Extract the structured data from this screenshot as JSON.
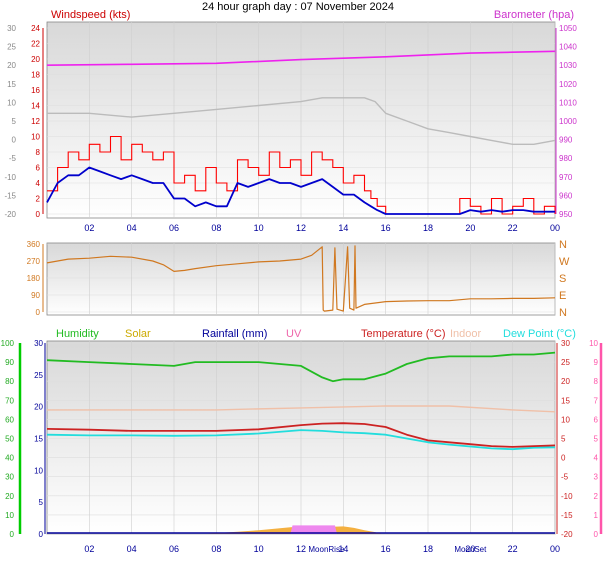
{
  "title": "24 hour graph day : 07 November 2024",
  "colors": {
    "windspeed": "#ff0000",
    "wind_avg": "#0000cc",
    "barometer": "#ee22ee",
    "pressure_grey": "#bbbbbb",
    "wind_dir": "#d07820",
    "humidity": "#22bb22",
    "solar": "#ccaa00",
    "rainfall": "#000099",
    "uv": "#ee66aa",
    "temperature": "#cc2222",
    "indoor": "#f0c0a8",
    "dew_point": "#22dddd",
    "solar_fill": "#f4b040",
    "uv_fill": "#ee88ee",
    "axis_green": "#00cc00",
    "axis_pink": "#ff55aa"
  },
  "chart_data": [
    {
      "type": "line",
      "panel": "wind",
      "x_ticks": [
        "02",
        "04",
        "06",
        "08",
        "10",
        "12",
        "14",
        "16",
        "18",
        "20",
        "22",
        "00"
      ],
      "left_outer_ticks": [
        "30",
        "25",
        "20",
        "15",
        "10",
        "5",
        "0",
        "-5",
        "-10",
        "-15",
        "-20"
      ],
      "left_inner_ticks": [
        "24",
        "22",
        "20",
        "18",
        "16",
        "14",
        "12",
        "10",
        "8",
        "6",
        "4",
        "2",
        "0"
      ],
      "right_ticks": [
        "1050",
        "1040",
        "1030",
        "1020",
        "1010",
        "1000",
        "990",
        "980",
        "970",
        "960",
        "950"
      ],
      "ylabel_left": "Windspeed (kts)",
      "ylabel_right": "Barometer (hpa)",
      "y_range_left": [
        0,
        24
      ],
      "y_range_right": [
        950,
        1050
      ],
      "x_range": [
        0,
        24
      ],
      "series": [
        {
          "name": "Barometer (hpa)",
          "color_key": "barometer",
          "axis": "right",
          "x": [
            0,
            4,
            8,
            12,
            16,
            20,
            22,
            24
          ],
          "y": [
            1030,
            1030.5,
            1031,
            1033,
            1034.5,
            1036.5,
            1037,
            1037.5
          ]
        },
        {
          "name": "",
          "color_key": "pressure_grey",
          "axis": "left",
          "x": [
            0,
            2,
            4,
            6,
            8,
            10,
            12,
            13,
            14,
            15,
            15.5,
            16,
            17,
            18,
            19,
            20,
            21,
            22,
            23,
            24
          ],
          "y": [
            13,
            13,
            12.5,
            13,
            13.5,
            14,
            14.5,
            15,
            15,
            15,
            14.5,
            13,
            12,
            11,
            10.5,
            10,
            9.5,
            9,
            9,
            9.5
          ]
        },
        {
          "name": "Windspeed (kts)",
          "color_key": "windspeed",
          "axis": "left",
          "x": [
            0,
            0.5,
            1,
            1.5,
            2,
            2.5,
            3,
            3.5,
            4,
            4.5,
            5,
            5.5,
            6,
            6.5,
            7,
            7.5,
            8,
            8.5,
            9,
            9.5,
            10,
            10.5,
            11,
            11.5,
            12,
            12.5,
            13,
            13.5,
            14,
            14.5,
            15,
            15.3,
            15.6,
            16,
            17,
            18,
            18.5,
            19,
            19.5,
            20,
            20.5,
            21,
            21.5,
            22,
            22.5,
            23,
            23.5,
            24
          ],
          "y": [
            3,
            6,
            8,
            7,
            9,
            8,
            10,
            7,
            9,
            8,
            7,
            8,
            4,
            5,
            3,
            6,
            4,
            3,
            7,
            6,
            5,
            8,
            6,
            7,
            5,
            8,
            7,
            6,
            4,
            5,
            3,
            2,
            1,
            0,
            0,
            0,
            0,
            0,
            2,
            1,
            0,
            2,
            0,
            1,
            2,
            0,
            1,
            0
          ]
        },
        {
          "name": "",
          "color_key": "wind_avg",
          "axis": "left",
          "x": [
            0,
            0.5,
            1,
            1.5,
            2,
            2.5,
            3,
            3.5,
            4,
            4.5,
            5,
            5.5,
            6,
            6.5,
            7,
            7.5,
            8,
            8.5,
            9,
            9.5,
            10,
            10.5,
            11,
            11.5,
            12,
            12.5,
            13,
            13.5,
            14,
            14.5,
            15,
            15.3,
            15.6,
            16,
            17,
            18,
            18.5,
            19,
            19.5,
            20,
            20.5,
            21,
            21.5,
            22,
            22.5,
            23,
            23.5,
            24
          ],
          "y": [
            1.5,
            4,
            5,
            5,
            6,
            5.5,
            5,
            4.5,
            5,
            4.5,
            4,
            4,
            2,
            2,
            1,
            1.5,
            1,
            1,
            4,
            3.5,
            4,
            4.5,
            4,
            4,
            3.5,
            4,
            4.5,
            3.5,
            2.5,
            2.5,
            1.5,
            1,
            0.5,
            0,
            0,
            0,
            0,
            0,
            0,
            0.5,
            0.3,
            0.5,
            0.3,
            0.5,
            0.5,
            0.3,
            0.3,
            0.3
          ]
        }
      ]
    },
    {
      "type": "line",
      "panel": "wind_direction",
      "x_ticks": [
        "02",
        "04",
        "06",
        "08",
        "10",
        "12",
        "14",
        "16",
        "18",
        "20",
        "22",
        "00"
      ],
      "left_ticks": [
        "360",
        "270",
        "180",
        "90",
        "0"
      ],
      "right_ticks": [
        "N",
        "W",
        "S",
        "E",
        "N"
      ],
      "y_range": [
        0,
        360
      ],
      "x_range": [
        0,
        24
      ],
      "series": [
        {
          "name": "",
          "color_key": "wind_dir",
          "axis": "left",
          "x": [
            0,
            1,
            2,
            3,
            4,
            5,
            5.5,
            6,
            6.5,
            7,
            8,
            9,
            10,
            11,
            12,
            12.5,
            13,
            13.05,
            13.1,
            13.5,
            13.6,
            13.7,
            14,
            14.2,
            14.3,
            14.5,
            14.55,
            14.6,
            15,
            16,
            17,
            18,
            19,
            20,
            21,
            22,
            23,
            24
          ],
          "y": [
            260,
            280,
            285,
            295,
            290,
            270,
            250,
            215,
            220,
            230,
            245,
            255,
            265,
            270,
            280,
            300,
            345,
            10,
            5,
            10,
            340,
            15,
            5,
            345,
            20,
            10,
            350,
            20,
            40,
            55,
            58,
            60,
            60,
            70,
            70,
            72,
            72,
            75
          ]
        }
      ]
    },
    {
      "type": "line",
      "panel": "temperature_humidity",
      "x_ticks": [
        "02",
        "04",
        "06",
        "08",
        "10",
        "12",
        "14",
        "16",
        "18",
        "20",
        "22",
        "00"
      ],
      "left_outer_ticks": [
        "100",
        "90",
        "80",
        "70",
        "60",
        "50",
        "40",
        "30",
        "20",
        "10",
        "0"
      ],
      "left_inner_ticks": [
        "30",
        "25",
        "20",
        "15",
        "10",
        "5",
        "0"
      ],
      "right_ticks": [
        "30",
        "25",
        "20",
        "15",
        "10",
        "5",
        "0",
        "-5",
        "-10",
        "-15",
        "-20"
      ],
      "right_outer_ticks": [
        "10",
        "9",
        "8",
        "7",
        "6",
        "5",
        "4",
        "3",
        "2",
        "1",
        "0"
      ],
      "moon_labels": [
        "MoonRise",
        "MoonSet"
      ],
      "legend": [
        "Humidity",
        "Solar",
        "Rainfall (mm)",
        "UV",
        "Temperature (°C)",
        "Indoor",
        "Dew Point (°C)"
      ],
      "y_range_humidity": [
        0,
        100
      ],
      "y_range_temperature": [
        -20,
        30
      ],
      "x_range": [
        0,
        24
      ],
      "series": [
        {
          "name": "Humidity",
          "color_key": "humidity",
          "axis": "humidity",
          "x": [
            0,
            2,
            4,
            6,
            7,
            8,
            10,
            12,
            13,
            13.5,
            14,
            15,
            16,
            17,
            18,
            19,
            20,
            21,
            22,
            23,
            24
          ],
          "y": [
            91,
            90,
            89,
            88,
            90,
            90,
            90,
            88,
            82,
            80,
            81,
            81,
            84,
            89,
            92,
            93,
            93,
            93,
            94,
            94,
            95
          ]
        },
        {
          "name": "Indoor",
          "color_key": "indoor",
          "axis": "temperature",
          "x": [
            0,
            4,
            8,
            12,
            16,
            19,
            22,
            24
          ],
          "y": [
            12.5,
            12.5,
            12.5,
            13,
            13.5,
            13.5,
            12.5,
            12
          ]
        },
        {
          "name": "Temperature (°C)",
          "color_key": "temperature",
          "axis": "temperature",
          "x": [
            0,
            2,
            4,
            6,
            8,
            10,
            12,
            13,
            14,
            15,
            16,
            17,
            18,
            19,
            20,
            21,
            22,
            23,
            24
          ],
          "y": [
            7.5,
            7.3,
            7.0,
            7.0,
            7.0,
            7.4,
            8.5,
            8.9,
            9.0,
            8.8,
            8.0,
            6.0,
            4.5,
            4.0,
            3.5,
            3.0,
            2.8,
            3.0,
            3.2
          ]
        },
        {
          "name": "Dew Point (°C)",
          "color_key": "dew_point",
          "axis": "temperature",
          "x": [
            0,
            2,
            4,
            6,
            8,
            10,
            12,
            13,
            14,
            15,
            16,
            17,
            18,
            19,
            20,
            21,
            22,
            23,
            24
          ],
          "y": [
            6.0,
            5.8,
            5.8,
            5.7,
            5.8,
            6.3,
            7.2,
            7.0,
            6.6,
            6.4,
            6.0,
            5.0,
            4.0,
            3.4,
            2.9,
            2.4,
            2.2,
            2.6,
            2.7
          ]
        },
        {
          "name": "Solar",
          "color_key": "solar_fill",
          "axis": "humidity",
          "fill": true,
          "x": [
            7.6,
            8,
            9,
            10,
            11,
            11.5,
            12,
            12.5,
            13,
            13.5,
            14,
            14.5,
            15,
            15.5,
            15.8
          ],
          "y": [
            0,
            0.5,
            1.2,
            2.0,
            3.0,
            3.5,
            3.8,
            4.2,
            4.0,
            3.8,
            4.0,
            3.2,
            2.0,
            1.0,
            0
          ]
        },
        {
          "name": "UV",
          "color_key": "uv_fill",
          "axis": "humidity",
          "fill": true,
          "x": [
            11.5,
            11.6,
            13.6,
            13.7
          ],
          "y": [
            0,
            4.5,
            4.5,
            0
          ]
        }
      ]
    }
  ]
}
